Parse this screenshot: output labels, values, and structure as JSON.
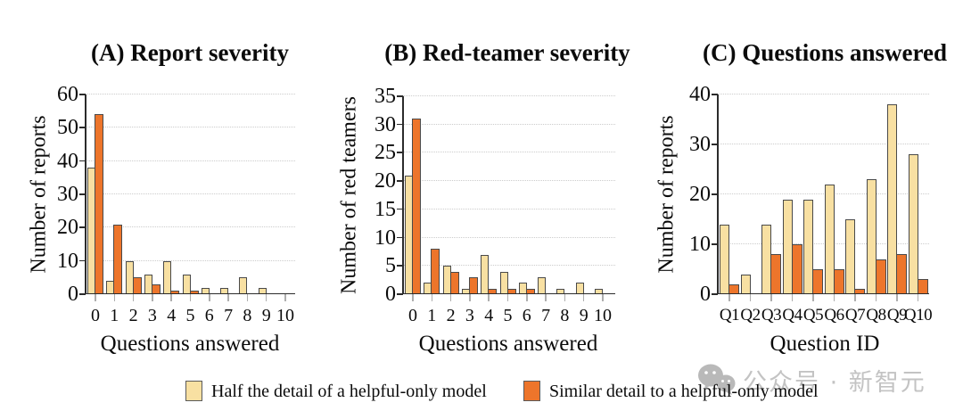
{
  "figure": {
    "legend": {
      "items": [
        {
          "label": "Half the detail of a helpful-only model",
          "color": "#F8E0A2"
        },
        {
          "label": "Similar detail to a helpful-only model",
          "color": "#ED752B"
        }
      ]
    },
    "watermark": {
      "icon": "wechat-icon",
      "text": "公众号 · 新智元",
      "color": "#c3c3c3"
    },
    "colors": {
      "bar_border": "#4a4a4a",
      "axis": "#2b2b2b",
      "gridline": "#cccccc"
    }
  },
  "chart_data": [
    {
      "type": "bar",
      "title": "(A) Report severity",
      "xlabel": "Questions answered",
      "ylabel": "Number of reports",
      "categories": [
        "0",
        "1",
        "2",
        "3",
        "4",
        "5",
        "6",
        "7",
        "8",
        "9",
        "10"
      ],
      "series": [
        {
          "name": "Half the detail of a helpful-only model",
          "color": "#F8E0A2",
          "values": [
            38,
            4,
            10,
            6,
            10,
            6,
            2,
            2,
            5,
            2,
            0
          ]
        },
        {
          "name": "Similar detail to a helpful-only model",
          "color": "#ED752B",
          "values": [
            54,
            21,
            5,
            3,
            1,
            1,
            0,
            0,
            0,
            0,
            0
          ]
        }
      ],
      "ylim": [
        0,
        60
      ],
      "ytick_step": 10,
      "grid": true,
      "legend_position": "bottom"
    },
    {
      "type": "bar",
      "title": "(B) Red-teamer severity",
      "xlabel": "Questions answered",
      "ylabel": "Number of red teamers",
      "categories": [
        "0",
        "1",
        "2",
        "3",
        "4",
        "5",
        "6",
        "7",
        "8",
        "9",
        "10"
      ],
      "series": [
        {
          "name": "Half the detail of a helpful-only model",
          "color": "#F8E0A2",
          "values": [
            21,
            2,
            5,
            1,
            7,
            4,
            2,
            3,
            1,
            2,
            1
          ]
        },
        {
          "name": "Similar detail to a helpful-only model",
          "color": "#ED752B",
          "values": [
            31,
            8,
            4,
            3,
            1,
            1,
            1,
            0,
            0,
            0,
            0
          ]
        }
      ],
      "ylim": [
        0,
        35
      ],
      "ytick_step": 5,
      "grid": true,
      "legend_position": "bottom"
    },
    {
      "type": "bar",
      "title": "(C) Questions answered",
      "xlabel": "Question ID",
      "ylabel": "Number of reports",
      "categories": [
        "Q1",
        "Q2",
        "Q3",
        "Q4",
        "Q5",
        "Q6",
        "Q7",
        "Q8",
        "Q9",
        "Q10"
      ],
      "series": [
        {
          "name": "Half the detail of a helpful-only model",
          "color": "#F8E0A2",
          "values": [
            14,
            4,
            14,
            19,
            19,
            22,
            15,
            23,
            38,
            28
          ]
        },
        {
          "name": "Similar detail to a helpful-only model",
          "color": "#ED752B",
          "values": [
            2,
            0,
            8,
            10,
            5,
            5,
            1,
            7,
            8,
            3
          ]
        }
      ],
      "ylim": [
        0,
        40
      ],
      "ytick_step": 10,
      "grid": true,
      "legend_position": "bottom"
    }
  ]
}
